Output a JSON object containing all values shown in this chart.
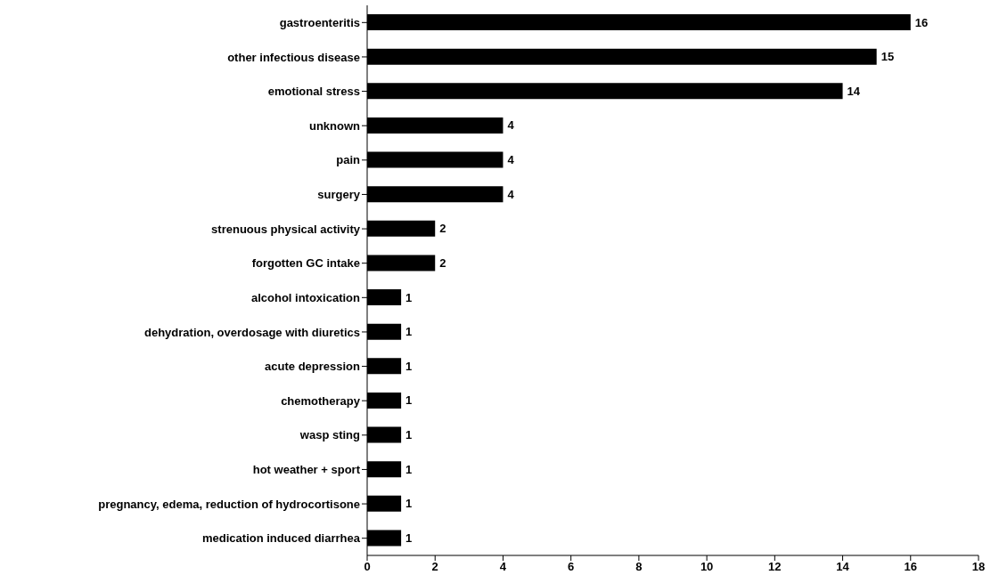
{
  "chart_data": {
    "type": "bar",
    "orientation": "horizontal",
    "categories": [
      "gastroenteritis",
      "other infectious disease",
      "emotional stress",
      "unknown",
      "pain",
      "surgery",
      "strenuous physical activity",
      "forgotten GC intake",
      "alcohol intoxication",
      "dehydration, overdosage with diuretics",
      "acute depression",
      "chemotherapy",
      "wasp sting",
      "hot weather + sport",
      "pregnancy, edema, reduction of hydrocortisone",
      "medication induced diarrhea"
    ],
    "values": [
      16,
      15,
      14,
      4,
      4,
      4,
      2,
      2,
      1,
      1,
      1,
      1,
      1,
      1,
      1,
      1
    ],
    "color": "#000000",
    "xlim": [
      0,
      18
    ],
    "xticks": [
      0,
      2,
      4,
      6,
      8,
      10,
      12,
      14,
      16,
      18
    ],
    "data_labels": true,
    "grid": false,
    "legend": false
  }
}
